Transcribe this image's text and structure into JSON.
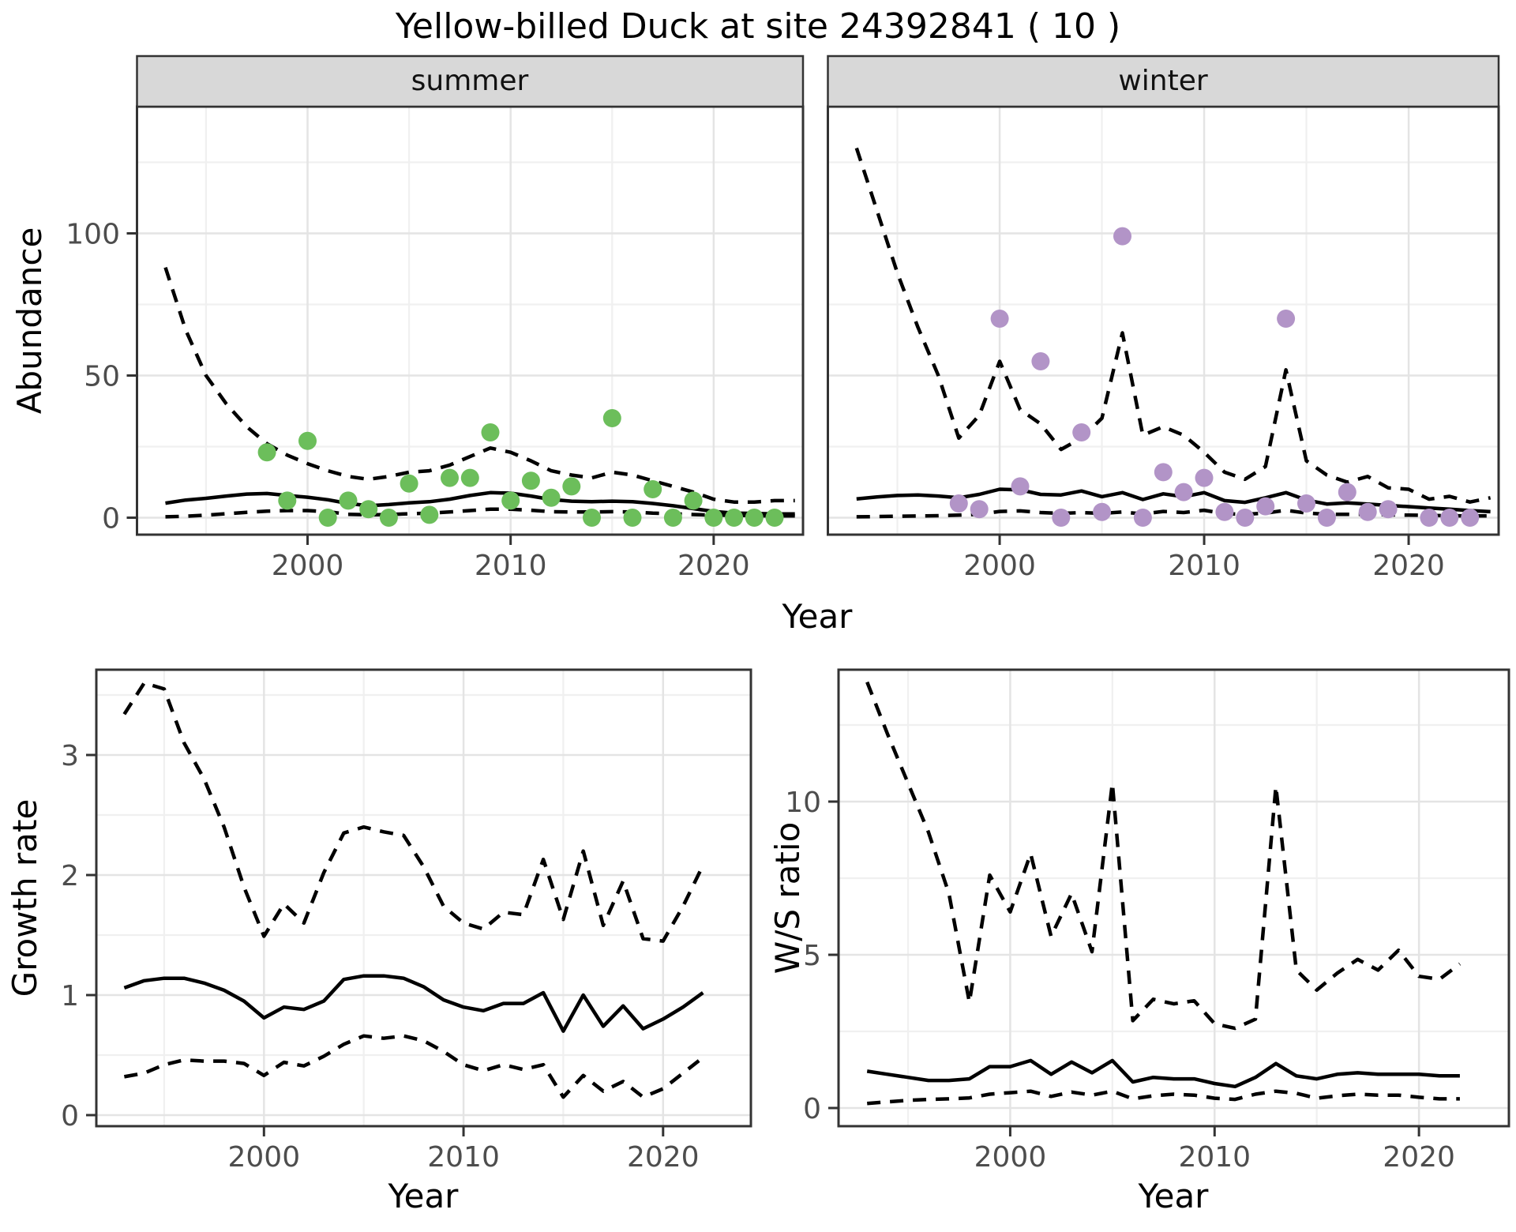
{
  "title": "Yellow-billed Duck at site 24392841 ( 10 )",
  "colors": {
    "summer_point": "#6cbe5b",
    "winter_point": "#b294c7",
    "line": "#000000",
    "panel_border": "#333333",
    "strip_bg": "#d8d8d8",
    "grid_major": "#e4e4e4",
    "grid_minor": "#f0f0f0",
    "tick_text": "#4d4d4d"
  },
  "chart_data": [
    {
      "id": "abundance-summer",
      "type": "line",
      "facet_label": "summer",
      "xlabel": "Year",
      "ylabel": "Abundance",
      "x_range": [
        1991.6,
        2024.4
      ],
      "y_range": [
        -6,
        144.6
      ],
      "x_ticks": [
        2000,
        2010,
        2020
      ],
      "x_minor_ticks": [
        1995,
        2005,
        2015
      ],
      "y_ticks": [
        0,
        50,
        100
      ],
      "y_minor_ticks": [
        25,
        75,
        125
      ],
      "lines": {
        "years": [
          1993,
          1994,
          1995,
          1996,
          1997,
          1998,
          1999,
          2000,
          2001,
          2002,
          2003,
          2004,
          2005,
          2006,
          2007,
          2008,
          2009,
          2010,
          2011,
          2012,
          2013,
          2014,
          2015,
          2016,
          2017,
          2018,
          2019,
          2020,
          2021,
          2022,
          2023,
          2024
        ],
        "estimate": [
          5.1,
          6.2,
          6.8,
          7.6,
          8.3,
          8.5,
          7.8,
          7.2,
          6.3,
          5.0,
          4.2,
          4.6,
          5.2,
          5.6,
          6.5,
          7.8,
          8.8,
          8.6,
          7.6,
          6.4,
          5.8,
          5.6,
          5.8,
          5.6,
          5.0,
          4.2,
          3.2,
          2.2,
          1.6,
          1.5,
          1.3,
          1.3
        ],
        "upper_ci": [
          88,
          66,
          50,
          40,
          32,
          26,
          22,
          19,
          16.5,
          14.5,
          13.5,
          14.5,
          16,
          16.5,
          18.5,
          21.5,
          24.5,
          23,
          20,
          16.5,
          15,
          14,
          16,
          15,
          13,
          11,
          9,
          6.5,
          5.5,
          5.5,
          6,
          6
        ],
        "lower_ci": [
          0.3,
          0.5,
          0.9,
          1.4,
          1.9,
          2.3,
          2.5,
          2.5,
          2.1,
          1.2,
          1.0,
          1.1,
          1.4,
          1.6,
          2.0,
          2.5,
          3.0,
          3.0,
          2.6,
          2.1,
          2.0,
          2.0,
          2.1,
          2.0,
          1.6,
          1.4,
          1.1,
          0.9,
          0.8,
          0.7,
          0.6,
          0.6
        ]
      },
      "points": {
        "label": "observed summer abundance",
        "color_key": "summer_point",
        "years": [
          1998,
          1999,
          2000,
          2001,
          2002,
          2003,
          2004,
          2005,
          2006,
          2007,
          2008,
          2009,
          2010,
          2011,
          2012,
          2013,
          2014,
          2015,
          2016,
          2017,
          2018,
          2019,
          2020,
          2021,
          2022,
          2023
        ],
        "values": [
          23,
          6,
          27,
          0,
          6,
          3,
          0,
          12,
          1,
          14,
          14,
          30,
          6,
          13,
          7,
          11,
          0,
          35,
          0,
          10,
          0,
          6,
          0,
          0,
          0,
          0
        ]
      }
    },
    {
      "id": "abundance-winter",
      "type": "line",
      "facet_label": "winter",
      "xlabel": "Year",
      "ylabel": "Abundance",
      "x_range": [
        1991.6,
        2024.4
      ],
      "y_range": [
        -6,
        144.6
      ],
      "x_ticks": [
        2000,
        2010,
        2020
      ],
      "x_minor_ticks": [
        1995,
        2005,
        2015
      ],
      "y_ticks": [
        0,
        50,
        100
      ],
      "y_minor_ticks": [
        25,
        75,
        125
      ],
      "lines": {
        "years": [
          1993,
          1994,
          1995,
          1996,
          1997,
          1998,
          1999,
          2000,
          2001,
          2002,
          2003,
          2004,
          2005,
          2006,
          2007,
          2008,
          2009,
          2010,
          2011,
          2012,
          2013,
          2014,
          2015,
          2016,
          2017,
          2018,
          2019,
          2020,
          2021,
          2022,
          2023,
          2024
        ],
        "estimate": [
          6.6,
          7.3,
          7.8,
          8.0,
          7.6,
          7.0,
          8.2,
          10.0,
          9.8,
          8.2,
          8.0,
          9.4,
          7.4,
          8.8,
          6.4,
          8.4,
          7.4,
          8.8,
          6.0,
          5.4,
          7.0,
          8.8,
          6.2,
          4.8,
          5.2,
          4.8,
          4.3,
          3.9,
          3.4,
          3.0,
          2.5,
          2.1
        ],
        "upper_ci": [
          130,
          108,
          86,
          67,
          50,
          28,
          36,
          55,
          38,
          33,
          24,
          28,
          35,
          65,
          29,
          32,
          29,
          23,
          16,
          13.5,
          18,
          52,
          20,
          15,
          12.5,
          14.5,
          10.5,
          10,
          6.5,
          7.5,
          5.5,
          7
        ],
        "lower_ci": [
          0.3,
          0.4,
          0.5,
          0.6,
          0.7,
          0.9,
          1.2,
          2.2,
          2.4,
          1.8,
          1.5,
          1.8,
          1.5,
          2.0,
          1.3,
          2.2,
          1.8,
          2.6,
          1.4,
          1.2,
          1.6,
          2.6,
          1.6,
          1.2,
          1.2,
          1.2,
          1.0,
          0.9,
          0.8,
          0.7,
          0.6,
          0.6
        ]
      },
      "points": {
        "label": "observed winter abundance",
        "color_key": "winter_point",
        "years": [
          1998,
          1999,
          2000,
          2001,
          2002,
          2003,
          2004,
          2005,
          2006,
          2007,
          2008,
          2009,
          2010,
          2011,
          2012,
          2013,
          2014,
          2015,
          2016,
          2017,
          2018,
          2019,
          2021,
          2022,
          2023
        ],
        "values": [
          5,
          3,
          70,
          11,
          55,
          0,
          30,
          2,
          99,
          0,
          16,
          9,
          14,
          2,
          0,
          4,
          70,
          5,
          0,
          9,
          2,
          3,
          0,
          0,
          0
        ]
      }
    },
    {
      "id": "growth-rate",
      "type": "line",
      "facet_label": "",
      "xlabel": "Year",
      "ylabel": "Growth rate",
      "x_range": [
        1991.6,
        2024.4
      ],
      "y_range": [
        -0.09,
        3.71
      ],
      "x_ticks": [
        2000,
        2010,
        2020
      ],
      "x_minor_ticks": [
        1995,
        2005,
        2015
      ],
      "y_ticks": [
        0,
        1,
        2,
        3
      ],
      "y_minor_ticks": [
        0.5,
        1.5,
        2.5,
        3.5
      ],
      "lines": {
        "years": [
          1993,
          1994,
          1995,
          1996,
          1997,
          1998,
          1999,
          2000,
          2001,
          2002,
          2003,
          2004,
          2005,
          2006,
          2007,
          2008,
          2009,
          2010,
          2011,
          2012,
          2013,
          2014,
          2015,
          2016,
          2017,
          2018,
          2019,
          2020,
          2021,
          2022
        ],
        "estimate": [
          1.06,
          1.12,
          1.14,
          1.14,
          1.1,
          1.04,
          0.95,
          0.81,
          0.9,
          0.88,
          0.95,
          1.13,
          1.16,
          1.16,
          1.14,
          1.07,
          0.96,
          0.9,
          0.87,
          0.93,
          0.93,
          1.02,
          0.7,
          1.0,
          0.74,
          0.91,
          0.72,
          0.8,
          0.9,
          1.02
        ],
        "upper_ci": [
          3.34,
          3.6,
          3.55,
          3.1,
          2.8,
          2.4,
          1.9,
          1.49,
          1.76,
          1.6,
          2.02,
          2.35,
          2.4,
          2.36,
          2.33,
          2.07,
          1.74,
          1.6,
          1.55,
          1.69,
          1.67,
          2.13,
          1.63,
          2.2,
          1.58,
          1.95,
          1.47,
          1.45,
          1.74,
          2.08
        ],
        "lower_ci": [
          0.32,
          0.35,
          0.42,
          0.46,
          0.45,
          0.45,
          0.43,
          0.33,
          0.44,
          0.41,
          0.49,
          0.59,
          0.66,
          0.64,
          0.66,
          0.62,
          0.53,
          0.42,
          0.37,
          0.42,
          0.38,
          0.42,
          0.15,
          0.33,
          0.2,
          0.28,
          0.15,
          0.22,
          0.35,
          0.48
        ]
      },
      "points": null
    },
    {
      "id": "ws-ratio",
      "type": "line",
      "facet_label": "",
      "xlabel": "Year",
      "ylabel": "W/S ratio",
      "x_range": [
        1991.6,
        2024.4
      ],
      "y_range": [
        -0.59,
        14.3
      ],
      "x_ticks": [
        2000,
        2010,
        2020
      ],
      "x_minor_ticks": [
        1995,
        2005,
        2015
      ],
      "y_ticks": [
        0,
        5,
        10
      ],
      "y_minor_ticks": [
        2.5,
        7.5,
        12.5
      ],
      "lines": {
        "years": [
          1993,
          1994,
          1995,
          1996,
          1997,
          1998,
          1999,
          2000,
          2001,
          2002,
          2003,
          2004,
          2005,
          2006,
          2007,
          2008,
          2009,
          2010,
          2011,
          2012,
          2013,
          2014,
          2015,
          2016,
          2017,
          2018,
          2019,
          2020,
          2021,
          2022
        ],
        "estimate": [
          1.2,
          1.1,
          1.0,
          0.9,
          0.9,
          0.95,
          1.35,
          1.35,
          1.55,
          1.1,
          1.5,
          1.15,
          1.55,
          0.85,
          1.0,
          0.95,
          0.95,
          0.8,
          0.7,
          1.0,
          1.45,
          1.05,
          0.95,
          1.1,
          1.15,
          1.1,
          1.1,
          1.1,
          1.05,
          1.05
        ],
        "upper_ci": [
          13.9,
          12.2,
          10.6,
          9.0,
          7.0,
          3.45,
          7.6,
          6.4,
          8.3,
          5.6,
          7.0,
          5.1,
          10.6,
          2.85,
          3.55,
          3.4,
          3.5,
          2.75,
          2.6,
          2.9,
          10.5,
          4.5,
          3.85,
          4.4,
          4.85,
          4.5,
          5.15,
          4.3,
          4.2,
          4.7
        ],
        "lower_ci": [
          0.15,
          0.2,
          0.25,
          0.28,
          0.3,
          0.33,
          0.45,
          0.5,
          0.55,
          0.38,
          0.52,
          0.42,
          0.55,
          0.3,
          0.4,
          0.45,
          0.42,
          0.32,
          0.28,
          0.45,
          0.55,
          0.48,
          0.32,
          0.4,
          0.45,
          0.42,
          0.42,
          0.35,
          0.3,
          0.3
        ]
      },
      "points": null
    }
  ]
}
